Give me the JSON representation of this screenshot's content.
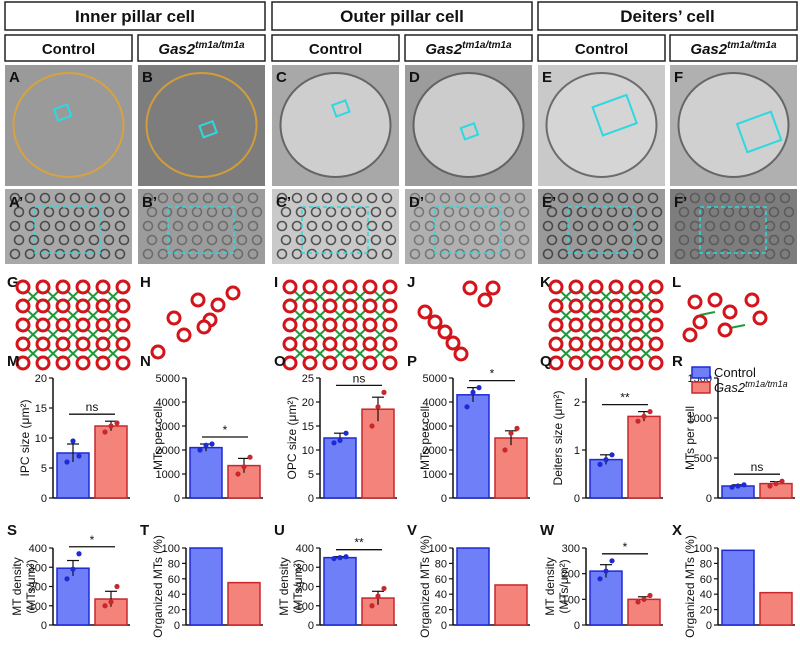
{
  "groups": [
    {
      "title": "Inner pillar cell",
      "columns": [
        {
          "label": "Control"
        },
        {
          "label": "Gas2",
          "sup": "tm1a/tm1a"
        }
      ]
    },
    {
      "title": "Outer pillar cell",
      "columns": [
        {
          "label": "Control"
        },
        {
          "label": "Gas2",
          "sup": "tm1a/tm1a"
        }
      ]
    },
    {
      "title": "Deiters’ cell",
      "columns": [
        {
          "label": "Control"
        },
        {
          "label": "Gas2",
          "sup": "tm1a/tm1a"
        }
      ]
    }
  ],
  "panels": {
    "micrograph": [
      "A",
      "B",
      "C",
      "D",
      "E",
      "F"
    ],
    "zoom": [
      "A’",
      "B’",
      "C’",
      "D’",
      "E’",
      "F’"
    ],
    "schematic": [
      "G",
      "H",
      "I",
      "J",
      "K",
      "L"
    ]
  },
  "chart_data": [
    {
      "type": "bar",
      "panel": "M",
      "ylabel": [
        "IPC size (μm²)"
      ],
      "ylim": [
        0,
        20
      ],
      "yticks": [
        0,
        5,
        10,
        15,
        20
      ],
      "significance": "ns",
      "series": [
        {
          "color": "#6f7ff7",
          "values": [
            7.5
          ],
          "errors": [
            1.5
          ],
          "points": [
            [
              6,
              9.5,
              7
            ]
          ]
        },
        {
          "color": "#f4837b",
          "values": [
            12
          ],
          "errors": [
            0.8
          ],
          "points": [
            [
              11,
              12,
              12.5
            ]
          ]
        }
      ]
    },
    {
      "type": "bar",
      "panel": "N",
      "ylabel": [
        "MTs per cell"
      ],
      "ylim": [
        0,
        5000
      ],
      "yticks": [
        0,
        1000,
        2000,
        3000,
        4000,
        5000
      ],
      "significance": "*",
      "series": [
        {
          "color": "#6f7ff7",
          "values": [
            2100
          ],
          "errors": [
            150
          ],
          "points": [
            [
              2000,
              2200,
              2250
            ]
          ]
        },
        {
          "color": "#f4837b",
          "values": [
            1350
          ],
          "errors": [
            300
          ],
          "points": [
            [
              1000,
              1300,
              1700
            ]
          ]
        }
      ]
    },
    {
      "type": "bar",
      "panel": "O",
      "ylabel": [
        "OPC size (μm²)"
      ],
      "ylim": [
        0,
        25
      ],
      "yticks": [
        0,
        5,
        10,
        15,
        20,
        25
      ],
      "significance": "ns",
      "series": [
        {
          "color": "#6f7ff7",
          "values": [
            12.5
          ],
          "errors": [
            1
          ],
          "points": [
            [
              11.5,
              12,
              13.5
            ]
          ]
        },
        {
          "color": "#f4837b",
          "values": [
            18.5
          ],
          "errors": [
            2.5
          ],
          "points": [
            [
              15,
              19,
              22
            ]
          ]
        }
      ]
    },
    {
      "type": "bar",
      "panel": "P",
      "ylabel": [
        "MTs per cell"
      ],
      "ylim": [
        0,
        5000
      ],
      "yticks": [
        0,
        1000,
        2000,
        3000,
        4000,
        5000
      ],
      "significance": "*",
      "series": [
        {
          "color": "#6f7ff7",
          "values": [
            4300
          ],
          "errors": [
            300
          ],
          "points": [
            [
              3800,
              4400,
              4600
            ]
          ]
        },
        {
          "color": "#f4837b",
          "values": [
            2500
          ],
          "errors": [
            300
          ],
          "points": [
            [
              2000,
              2700,
              2900
            ]
          ]
        }
      ]
    },
    {
      "type": "bar",
      "panel": "Q",
      "ylabel": [
        "Deiters size (μm²)"
      ],
      "ylim": [
        0,
        2.5
      ],
      "yticks": [
        0,
        1,
        2
      ],
      "significance": "**",
      "series": [
        {
          "color": "#6f7ff7",
          "values": [
            0.8
          ],
          "errors": [
            0.1
          ],
          "points": [
            [
              0.7,
              0.8,
              0.9
            ]
          ]
        },
        {
          "color": "#f4837b",
          "values": [
            1.7
          ],
          "errors": [
            0.1
          ],
          "points": [
            [
              1.6,
              1.7,
              1.8
            ]
          ]
        }
      ]
    },
    {
      "type": "bar",
      "panel": "R",
      "ylabel": [
        "MTs per cell"
      ],
      "ylim": [
        0,
        1500
      ],
      "yticks": [
        0,
        500,
        1000,
        1500
      ],
      "significance": "ns",
      "legend": true,
      "series": [
        {
          "name": "Control",
          "color": "#6f7ff7",
          "values": [
            150
          ],
          "errors": [
            15
          ],
          "points": [
            [
              135,
              150,
              165
            ]
          ]
        },
        {
          "name": "Gas2",
          "name_sup": "tm1a/tm1a",
          "color": "#f4837b",
          "values": [
            180
          ],
          "errors": [
            25
          ],
          "points": [
            [
              150,
              180,
              210
            ]
          ]
        }
      ]
    },
    {
      "type": "bar",
      "panel": "S",
      "ylabel": [
        "MT density",
        "(MTs/μm²)"
      ],
      "ylim": [
        0,
        400
      ],
      "yticks": [
        0,
        100,
        200,
        300,
        400
      ],
      "significance": "*",
      "series": [
        {
          "color": "#6f7ff7",
          "values": [
            295
          ],
          "errors": [
            40
          ],
          "points": [
            [
              240,
              290,
              370
            ]
          ]
        },
        {
          "color": "#f4837b",
          "values": [
            135
          ],
          "errors": [
            40
          ],
          "points": [
            [
              100,
              120,
              200
            ]
          ]
        }
      ]
    },
    {
      "type": "bar",
      "panel": "T",
      "ylabel": [
        "Organized MTs (%)"
      ],
      "ylim": [
        0,
        100
      ],
      "yticks": [
        0,
        20,
        40,
        60,
        80,
        100
      ],
      "series": [
        {
          "color": "#6f7ff7",
          "values": [
            100
          ]
        },
        {
          "color": "#f4837b",
          "values": [
            55
          ]
        }
      ]
    },
    {
      "type": "bar",
      "panel": "U",
      "ylabel": [
        "MT density",
        "(MTs/μm²)"
      ],
      "ylim": [
        0,
        400
      ],
      "yticks": [
        0,
        100,
        200,
        300,
        400
      ],
      "significance": "**",
      "series": [
        {
          "color": "#6f7ff7",
          "values": [
            350
          ],
          "errors": [
            5
          ],
          "points": [
            [
              345,
              350,
              355
            ]
          ]
        },
        {
          "color": "#f4837b",
          "values": [
            140
          ],
          "errors": [
            35
          ],
          "points": [
            [
              100,
              150,
              190
            ]
          ]
        }
      ]
    },
    {
      "type": "bar",
      "panel": "V",
      "ylabel": [
        "Organized MTs (%)"
      ],
      "ylim": [
        0,
        100
      ],
      "yticks": [
        0,
        20,
        40,
        60,
        80,
        100
      ],
      "series": [
        {
          "color": "#6f7ff7",
          "values": [
            100
          ]
        },
        {
          "color": "#f4837b",
          "values": [
            52
          ]
        }
      ]
    },
    {
      "type": "bar",
      "panel": "W",
      "ylabel": [
        "MT density",
        "(MTs/μm²)"
      ],
      "ylim": [
        0,
        300
      ],
      "yticks": [
        0,
        100,
        200,
        300
      ],
      "significance": "*",
      "series": [
        {
          "color": "#6f7ff7",
          "values": [
            210
          ],
          "errors": [
            25
          ],
          "points": [
            [
              180,
              210,
              250
            ]
          ]
        },
        {
          "color": "#f4837b",
          "values": [
            100
          ],
          "errors": [
            10
          ],
          "points": [
            [
              90,
              100,
              115
            ]
          ]
        }
      ]
    },
    {
      "type": "bar",
      "panel": "X",
      "ylabel": [
        "Organized MTs (%)"
      ],
      "ylim": [
        0,
        100
      ],
      "yticks": [
        0,
        20,
        40,
        60,
        80,
        100
      ],
      "series": [
        {
          "color": "#6f7ff7",
          "values": [
            97
          ]
        },
        {
          "color": "#f4837b",
          "values": [
            42
          ]
        }
      ]
    }
  ]
}
